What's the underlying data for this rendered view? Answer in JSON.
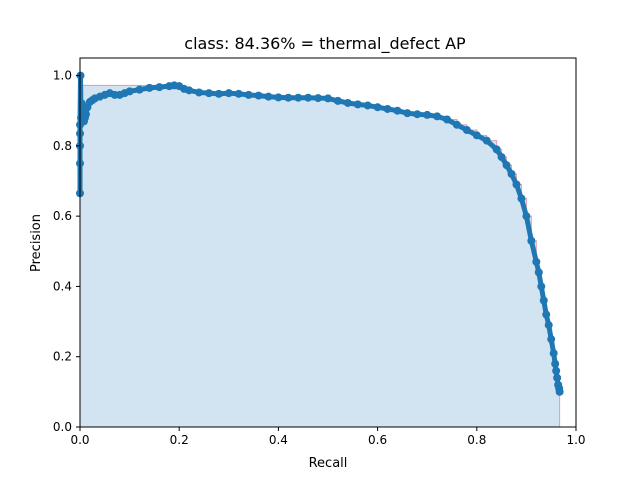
{
  "chart_data": {
    "type": "area",
    "title": "class: 84.36% = thermal_defect AP",
    "xlabel": "Recall",
    "ylabel": "Precision",
    "xlim": [
      0.0,
      1.0
    ],
    "ylim": [
      0.0,
      1.05
    ],
    "xticks": [
      "0.0",
      "0.2",
      "0.4",
      "0.6",
      "0.8",
      "1.0"
    ],
    "yticks": [
      "0.0",
      "0.2",
      "0.4",
      "0.6",
      "0.8",
      "1.0"
    ],
    "grid": false,
    "legend": "none",
    "colors": {
      "points": "#1f77b4",
      "fill": "#a6c8e3",
      "envelope": "#e0a0a8",
      "frame": "#000000"
    },
    "series": [
      {
        "x": [
          0.0,
          0.0,
          0.0,
          0.0,
          0.0,
          0.001,
          0.002,
          0.004,
          0.006,
          0.008,
          0.01,
          0.012,
          0.015,
          0.02,
          0.025,
          0.03,
          0.04,
          0.05,
          0.06,
          0.07,
          0.08,
          0.09,
          0.1,
          0.12,
          0.14,
          0.16,
          0.18,
          0.19,
          0.2,
          0.21,
          0.22,
          0.24,
          0.26,
          0.28,
          0.3,
          0.32,
          0.34,
          0.36,
          0.38,
          0.4,
          0.42,
          0.44,
          0.46,
          0.48,
          0.5,
          0.52,
          0.54,
          0.56,
          0.58,
          0.6,
          0.62,
          0.64,
          0.66,
          0.68,
          0.7,
          0.72,
          0.74,
          0.76,
          0.78,
          0.8,
          0.82,
          0.84,
          0.85,
          0.86,
          0.87,
          0.88,
          0.89,
          0.9,
          0.91,
          0.92,
          0.925,
          0.93,
          0.935,
          0.94,
          0.945,
          0.95,
          0.955,
          0.958,
          0.96,
          0.962,
          0.964,
          0.966,
          0.967
        ],
        "y": [
          0.665,
          0.75,
          0.8,
          0.835,
          0.86,
          1.0,
          0.88,
          0.92,
          0.9,
          0.87,
          0.88,
          0.89,
          0.91,
          0.925,
          0.93,
          0.935,
          0.94,
          0.945,
          0.95,
          0.945,
          0.945,
          0.95,
          0.955,
          0.96,
          0.965,
          0.967,
          0.97,
          0.972,
          0.97,
          0.962,
          0.958,
          0.952,
          0.95,
          0.948,
          0.95,
          0.948,
          0.945,
          0.943,
          0.94,
          0.938,
          0.937,
          0.937,
          0.937,
          0.936,
          0.935,
          0.928,
          0.922,
          0.918,
          0.915,
          0.91,
          0.905,
          0.9,
          0.893,
          0.89,
          0.888,
          0.884,
          0.875,
          0.86,
          0.845,
          0.83,
          0.815,
          0.79,
          0.768,
          0.745,
          0.72,
          0.69,
          0.65,
          0.6,
          0.53,
          0.47,
          0.44,
          0.4,
          0.36,
          0.32,
          0.29,
          0.25,
          0.21,
          0.18,
          0.16,
          0.14,
          0.12,
          0.11,
          0.1
        ]
      }
    ]
  }
}
